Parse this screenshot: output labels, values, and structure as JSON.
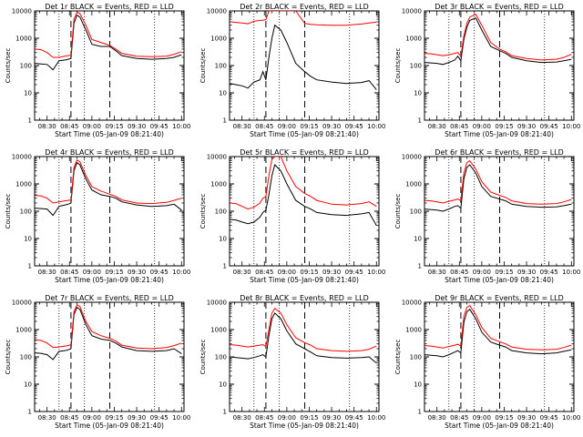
{
  "figure": {
    "xlabel": "Start Time (05-Jan-09 08:21:40)",
    "ylabel": "Counts/sec",
    "x_ticks": [
      "08:30",
      "08:45",
      "09:00",
      "09:15",
      "09:30",
      "09:45",
      "10:00"
    ],
    "y_ticks": [
      "1",
      "10",
      "100",
      "1000",
      "10000"
    ]
  },
  "colors": {
    "events": "#000000",
    "lld": "#ff0000"
  },
  "chart_data": [
    {
      "type": "line",
      "title": "Det 1r BLACK = Events, RED = LLD",
      "xlabel": "Start Time (05-Jan-09 08:21:40)",
      "ylabel": "Counts/sec",
      "xlim": [
        "08:21:40",
        "10:01:40"
      ],
      "ylim": [
        1,
        10000
      ],
      "yscale": "log",
      "markers": {
        "dotted": [
          "08:38",
          "08:55",
          "09:42"
        ],
        "dashed": [
          "08:46",
          "09:12"
        ]
      },
      "x": [
        "08:22",
        "08:26",
        "08:30",
        "08:34",
        "08:38",
        "08:42",
        "08:44",
        "08:46",
        "08:48",
        "08:50",
        "08:52",
        "08:56",
        "09:00",
        "09:06",
        "09:12",
        "09:16",
        "09:20",
        "09:30",
        "09:40",
        "09:50",
        "09:55",
        "10:00"
      ],
      "series": [
        {
          "name": "Events",
          "values": [
            120,
            115,
            110,
            70,
            150,
            160,
            170,
            180,
            3500,
            7000,
            6000,
            2000,
            600,
            500,
            500,
            350,
            230,
            180,
            170,
            180,
            200,
            250
          ]
        },
        {
          "name": "LLD",
          "values": [
            400,
            380,
            300,
            200,
            200,
            220,
            230,
            240,
            5000,
            9000,
            8000,
            3000,
            900,
            700,
            550,
            400,
            280,
            220,
            210,
            220,
            260,
            320
          ]
        }
      ]
    },
    {
      "type": "line",
      "title": "Det 2r BLACK = Events, RED = LLD",
      "xlabel": "Start Time (05-Jan-09 08:21:40)",
      "ylabel": "Counts/sec",
      "xlim": [
        "08:21:40",
        "10:01:40"
      ],
      "ylim": [
        1,
        10000
      ],
      "yscale": "log",
      "markers": {
        "dotted": [
          "08:38",
          "08:55",
          "09:42"
        ],
        "dashed": [
          "08:46",
          "09:12"
        ]
      },
      "x": [
        "08:22",
        "08:26",
        "08:30",
        "08:34",
        "08:38",
        "08:42",
        "08:44",
        "08:46",
        "08:48",
        "08:50",
        "08:52",
        "08:56",
        "09:00",
        "09:06",
        "09:12",
        "09:16",
        "09:20",
        "09:30",
        "09:40",
        "09:50",
        "09:55",
        "10:00"
      ],
      "series": [
        {
          "name": "Events",
          "values": [
            22,
            20,
            18,
            15,
            25,
            30,
            60,
            30,
            200,
            1000,
            3000,
            2000,
            700,
            120,
            60,
            40,
            30,
            25,
            22,
            24,
            28,
            13
          ]
        },
        {
          "name": "LLD",
          "values": [
            4000,
            3800,
            3600,
            3400,
            4200,
            4500,
            4600,
            4800,
            10000,
            10000,
            10000,
            10000,
            10000,
            10000,
            3500,
            3200,
            3100,
            3000,
            3000,
            3300,
            3600,
            3900
          ]
        }
      ]
    },
    {
      "type": "line",
      "title": "Det 3r BLACK = Events, RED = LLD",
      "xlabel": "Start Time (05-Jan-09 08:21:40)",
      "ylabel": "Counts/sec",
      "xlim": [
        "08:21:40",
        "10:01:40"
      ],
      "ylim": [
        1,
        10000
      ],
      "yscale": "log",
      "markers": {
        "dotted": [
          "08:38",
          "08:55",
          "09:42"
        ],
        "dashed": [
          "08:46",
          "09:12"
        ]
      },
      "x": [
        "08:22",
        "08:26",
        "08:30",
        "08:34",
        "08:38",
        "08:42",
        "08:44",
        "08:46",
        "08:48",
        "08:50",
        "08:52",
        "08:56",
        "09:00",
        "09:06",
        "09:12",
        "09:16",
        "09:20",
        "09:30",
        "09:40",
        "09:50",
        "09:55",
        "10:00"
      ],
      "series": [
        {
          "name": "Events",
          "values": [
            130,
            125,
            120,
            110,
            130,
            160,
            220,
            150,
            900,
            2500,
            4500,
            5500,
            2000,
            500,
            350,
            280,
            200,
            150,
            130,
            135,
            150,
            170
          ]
        },
        {
          "name": "LLD",
          "values": [
            280,
            270,
            250,
            230,
            250,
            280,
            300,
            220,
            1200,
            3500,
            6000,
            7500,
            3000,
            700,
            400,
            320,
            230,
            180,
            160,
            170,
            200,
            260
          ]
        }
      ]
    },
    {
      "type": "line",
      "title": "Det 4r BLACK = Events, RED = LLD",
      "xlabel": "Start Time (05-Jan-09 08:21:40)",
      "ylabel": "Counts/sec",
      "xlim": [
        "08:21:40",
        "10:01:40"
      ],
      "ylim": [
        1,
        10000
      ],
      "yscale": "log",
      "markers": {
        "dotted": [
          "08:38",
          "08:55",
          "09:42"
        ],
        "dashed": [
          "08:46",
          "09:12"
        ]
      },
      "x": [
        "08:22",
        "08:26",
        "08:30",
        "08:34",
        "08:38",
        "08:42",
        "08:44",
        "08:46",
        "08:48",
        "08:50",
        "08:52",
        "08:56",
        "09:00",
        "09:06",
        "09:12",
        "09:16",
        "09:20",
        "09:30",
        "09:40",
        "09:50",
        "09:55",
        "10:00"
      ],
      "series": [
        {
          "name": "Events",
          "values": [
            130,
            125,
            120,
            70,
            150,
            170,
            180,
            200,
            3000,
            6000,
            5000,
            1500,
            600,
            400,
            350,
            300,
            220,
            170,
            150,
            160,
            180,
            110
          ]
        },
        {
          "name": "LLD",
          "values": [
            380,
            360,
            300,
            200,
            220,
            240,
            250,
            260,
            4000,
            7500,
            6500,
            2000,
            800,
            550,
            420,
            350,
            260,
            200,
            190,
            210,
            250,
            300
          ]
        }
      ]
    },
    {
      "type": "line",
      "title": "Det 5r BLACK = Events, RED = LLD",
      "xlabel": "Start Time (05-Jan-09 08:21:40)",
      "ylabel": "Counts/sec",
      "xlim": [
        "08:21:40",
        "10:01:40"
      ],
      "ylim": [
        1,
        10000
      ],
      "yscale": "log",
      "markers": {
        "dotted": [
          "08:38",
          "08:55",
          "09:42"
        ],
        "dashed": [
          "08:46",
          "09:12"
        ]
      },
      "x": [
        "08:22",
        "08:26",
        "08:30",
        "08:34",
        "08:38",
        "08:42",
        "08:44",
        "08:46",
        "08:48",
        "08:50",
        "08:52",
        "08:56",
        "09:00",
        "09:06",
        "09:12",
        "09:16",
        "09:20",
        "09:30",
        "09:40",
        "09:50",
        "09:55",
        "10:00"
      ],
      "series": [
        {
          "name": "Events",
          "values": [
            50,
            48,
            40,
            35,
            40,
            60,
            90,
            110,
            400,
            2000,
            5000,
            3000,
            1000,
            250,
            150,
            120,
            90,
            75,
            70,
            80,
            90,
            30
          ]
        },
        {
          "name": "LLD",
          "values": [
            200,
            190,
            150,
            120,
            140,
            200,
            300,
            350,
            2000,
            8000,
            10000,
            10000,
            3000,
            800,
            450,
            350,
            250,
            180,
            170,
            190,
            220,
            150
          ]
        }
      ]
    },
    {
      "type": "line",
      "title": "Det 6r BLACK = Events, RED = LLD",
      "xlabel": "Start Time (05-Jan-09 08:21:40)",
      "ylabel": "Counts/sec",
      "xlim": [
        "08:21:40",
        "10:01:40"
      ],
      "ylim": [
        1,
        10000
      ],
      "yscale": "log",
      "markers": {
        "dotted": [
          "08:38",
          "08:55",
          "09:42"
        ],
        "dashed": [
          "08:46",
          "09:12"
        ]
      },
      "x": [
        "08:22",
        "08:26",
        "08:30",
        "08:34",
        "08:38",
        "08:42",
        "08:44",
        "08:46",
        "08:48",
        "08:50",
        "08:52",
        "08:56",
        "09:00",
        "09:06",
        "09:12",
        "09:16",
        "09:20",
        "09:30",
        "09:40",
        "09:50",
        "09:55",
        "10:00"
      ],
      "series": [
        {
          "name": "Events",
          "values": [
            120,
            115,
            110,
            100,
            120,
            150,
            160,
            130,
            1500,
            4000,
            5000,
            2500,
            800,
            350,
            280,
            240,
            180,
            150,
            140,
            145,
            160,
            180
          ]
        },
        {
          "name": "LLD",
          "values": [
            250,
            240,
            220,
            200,
            230,
            260,
            280,
            240,
            2500,
            6000,
            7000,
            3500,
            1200,
            500,
            380,
            320,
            240,
            190,
            180,
            190,
            220,
            270
          ]
        }
      ]
    },
    {
      "type": "line",
      "title": "Det 7r BLACK = Events, RED = LLD",
      "xlabel": "Start Time (05-Jan-09 08:21:40)",
      "ylabel": "Counts/sec",
      "xlim": [
        "08:21:40",
        "10:01:40"
      ],
      "ylim": [
        1,
        10000
      ],
      "yscale": "log",
      "markers": {
        "dotted": [
          "08:38",
          "08:55",
          "09:42"
        ],
        "dashed": [
          "08:46",
          "09:12"
        ]
      },
      "x": [
        "08:22",
        "08:26",
        "08:30",
        "08:34",
        "08:38",
        "08:42",
        "08:44",
        "08:46",
        "08:48",
        "08:50",
        "08:52",
        "08:56",
        "09:00",
        "09:06",
        "09:12",
        "09:16",
        "09:20",
        "09:30",
        "09:40",
        "09:50",
        "09:55",
        "10:00"
      ],
      "series": [
        {
          "name": "Events",
          "values": [
            140,
            135,
            120,
            80,
            160,
            170,
            180,
            200,
            3500,
            6500,
            5500,
            1500,
            600,
            450,
            400,
            320,
            230,
            170,
            160,
            170,
            200,
            130
          ]
        },
        {
          "name": "LLD",
          "values": [
            420,
            400,
            320,
            220,
            230,
            250,
            260,
            280,
            4500,
            8000,
            7000,
            2000,
            850,
            600,
            480,
            380,
            270,
            210,
            200,
            220,
            260,
            320
          ]
        }
      ]
    },
    {
      "type": "line",
      "title": "Det 8r BLACK = Events, RED = LLD",
      "xlabel": "Start Time (05-Jan-09 08:21:40)",
      "ylabel": "Counts/sec",
      "xlim": [
        "08:21:40",
        "10:01:40"
      ],
      "ylim": [
        1,
        10000
      ],
      "yscale": "log",
      "markers": {
        "dotted": [
          "08:38",
          "08:55",
          "09:42"
        ],
        "dashed": [
          "08:46",
          "09:12"
        ]
      },
      "x": [
        "08:22",
        "08:26",
        "08:30",
        "08:34",
        "08:38",
        "08:42",
        "08:44",
        "08:46",
        "08:48",
        "08:50",
        "08:52",
        "08:56",
        "09:00",
        "09:06",
        "09:12",
        "09:16",
        "09:20",
        "09:30",
        "09:40",
        "09:50",
        "09:55",
        "10:00"
      ],
      "series": [
        {
          "name": "Events",
          "values": [
            100,
            95,
            90,
            85,
            95,
            110,
            120,
            100,
            600,
            2500,
            4000,
            2500,
            900,
            300,
            200,
            150,
            110,
            95,
            90,
            95,
            100,
            60
          ]
        },
        {
          "name": "LLD",
          "values": [
            280,
            270,
            250,
            230,
            250,
            270,
            280,
            240,
            1000,
            4000,
            6000,
            4000,
            1500,
            500,
            330,
            270,
            200,
            170,
            160,
            170,
            190,
            250
          ]
        }
      ]
    },
    {
      "type": "line",
      "title": "Det 9r BLACK = Events, RED = LLD",
      "xlabel": "Start Time (05-Jan-09 08:21:40)",
      "ylabel": "Counts/sec",
      "xlim": [
        "08:21:40",
        "10:01:40"
      ],
      "ylim": [
        1,
        10000
      ],
      "yscale": "log",
      "markers": {
        "dotted": [
          "08:38",
          "08:55",
          "09:42"
        ],
        "dashed": [
          "08:46",
          "09:12"
        ]
      },
      "x": [
        "08:22",
        "08:26",
        "08:30",
        "08:34",
        "08:38",
        "08:42",
        "08:44",
        "08:46",
        "08:48",
        "08:50",
        "08:52",
        "08:56",
        "09:00",
        "09:06",
        "09:12",
        "09:16",
        "09:20",
        "09:30",
        "09:40",
        "09:50",
        "09:55",
        "10:00"
      ],
      "series": [
        {
          "name": "Events",
          "values": [
            120,
            115,
            110,
            100,
            120,
            150,
            170,
            140,
            1800,
            4500,
            5500,
            2500,
            800,
            350,
            270,
            230,
            170,
            140,
            130,
            140,
            160,
            180
          ]
        },
        {
          "name": "LLD",
          "values": [
            260,
            250,
            230,
            210,
            240,
            270,
            290,
            250,
            3000,
            6500,
            7500,
            3500,
            1200,
            480,
            360,
            300,
            230,
            190,
            180,
            190,
            220,
            270
          ]
        }
      ]
    }
  ]
}
